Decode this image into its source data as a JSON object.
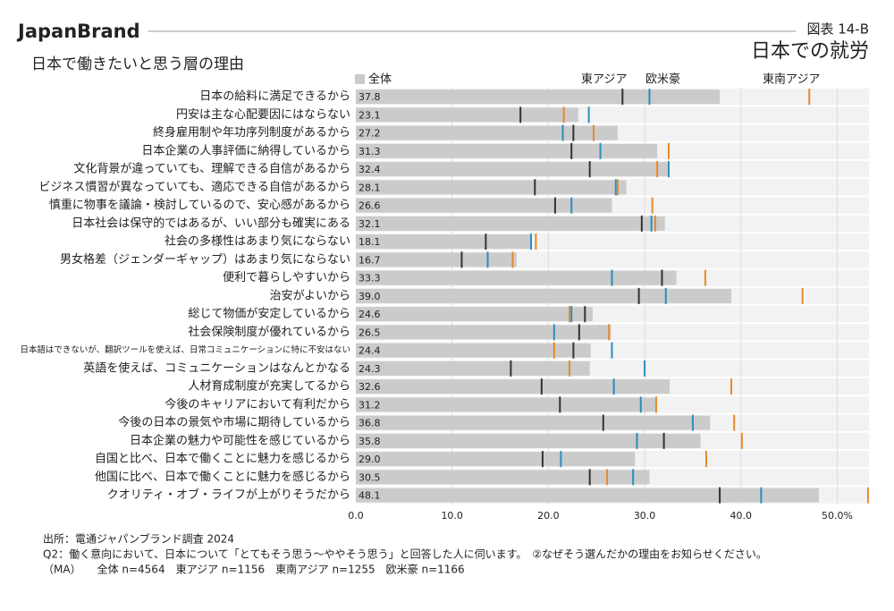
{
  "brand": "JapanBrand",
  "figure_label": "図表 14-B",
  "heading": "日本での就労",
  "chart_data": {
    "type": "bar",
    "subtitle": "日本で働きたいと思う層の理由",
    "categories": [
      "日本の給料に満足できるから",
      "円安は主な心配要因にはならない",
      "終身雇用制や年功序列制度があるから",
      "日本企業の人事評価に納得しているから",
      "文化背景が違っていても、理解できる自信があるから",
      "ビジネス慣習が異なっていても、適応できる自信があるから",
      "慎重に物事を議論・検討しているので、安心感があるから",
      "日本社会は保守的ではあるが、いい部分も確実にある",
      "社会の多様性はあまり気にならない",
      "男女格差（ジェンダーギャップ）はあまり気にならない",
      "便利で暮らしやすいから",
      "治安がよいから",
      "総じて物価が安定しているから",
      "社会保険制度が優れているから",
      "日本語はできないが、翻訳ツールを使えば、日常コミュニケーションに特に不安はない",
      "英語を使えば、コミュニケーションはなんとかなる",
      "人材育成制度が充実してるから",
      "今後のキャリアにおいて有利だから",
      "今後の日本の景気や市場に期待しているから",
      "日本企業の魅力や可能性を感じているから",
      "自国と比べ、日本で働くことに魅力を感じるから",
      "他国に比べ、日本で働くことに魅力を感じるから",
      "クオリティ・オブ・ライフが上がりそうだから"
    ],
    "series": [
      {
        "name": "全体",
        "color": "#cbcbcb",
        "values": [
          37.8,
          23.1,
          27.2,
          31.3,
          32.4,
          28.1,
          26.6,
          32.1,
          18.1,
          16.7,
          33.3,
          39.0,
          24.6,
          26.5,
          24.4,
          24.3,
          32.6,
          31.2,
          36.8,
          35.8,
          29.0,
          30.5,
          48.1
        ],
        "value_labels": [
          "37.8",
          "23.1",
          "27.2",
          "31.3",
          "32.4",
          "28.1",
          "26.6",
          "32.1",
          "18.1",
          "16.7",
          "33.3",
          "39.0",
          "24.6",
          "26.5",
          "24.4",
          "24.3",
          "32.6",
          "31.2",
          "36.8",
          "35.8",
          "29.0",
          "30.5",
          "48.1"
        ]
      },
      {
        "name": "東アジア",
        "color": "#333333",
        "values": [
          27.7,
          17.1,
          22.6,
          22.4,
          24.3,
          18.6,
          20.7,
          29.7,
          13.5,
          11.0,
          31.8,
          29.4,
          23.8,
          23.2,
          22.6,
          16.1,
          19.3,
          21.2,
          25.7,
          32.0,
          19.4,
          24.3,
          37.8
        ]
      },
      {
        "name": "欧米豪",
        "color": "#2a8fbd",
        "values": [
          30.5,
          24.2,
          21.5,
          25.4,
          32.5,
          27.0,
          22.4,
          30.7,
          18.2,
          13.7,
          26.6,
          32.2,
          22.4,
          20.6,
          26.6,
          30.0,
          26.8,
          29.6,
          35.0,
          29.2,
          21.3,
          28.8,
          42.1
        ]
      },
      {
        "name": "東南アジア",
        "color": "#e8892b",
        "values": [
          47.1,
          21.6,
          24.7,
          32.5,
          31.3,
          27.2,
          30.8,
          31.1,
          18.7,
          16.3,
          36.3,
          46.4,
          22.2,
          26.3,
          20.6,
          22.2,
          39.0,
          31.2,
          39.3,
          40.1,
          36.4,
          26.1,
          53.2
        ]
      }
    ],
    "xlim": [
      0,
      53.3
    ],
    "xticks": [
      {
        "value": 0,
        "label": "0.0"
      },
      {
        "value": 10,
        "label": "10.0"
      },
      {
        "value": 20,
        "label": "20.0"
      },
      {
        "value": 30,
        "label": "30.0"
      },
      {
        "value": 40,
        "label": "40.0"
      },
      {
        "value": 50,
        "label": "50.0%"
      }
    ],
    "grid": true
  },
  "notes": [
    "出所：電通ジャパンブランド調査 2024",
    "Q2：働く意向において、日本について「とてもそう思う～ややそう思う」と回答した人に伺います。　②なぜそう選んだかの理由をお知らせください。",
    "（MA）　　全体 n=4564　東アジア n=1156　東南アジア n=1255　欧米豪 n=1166"
  ]
}
